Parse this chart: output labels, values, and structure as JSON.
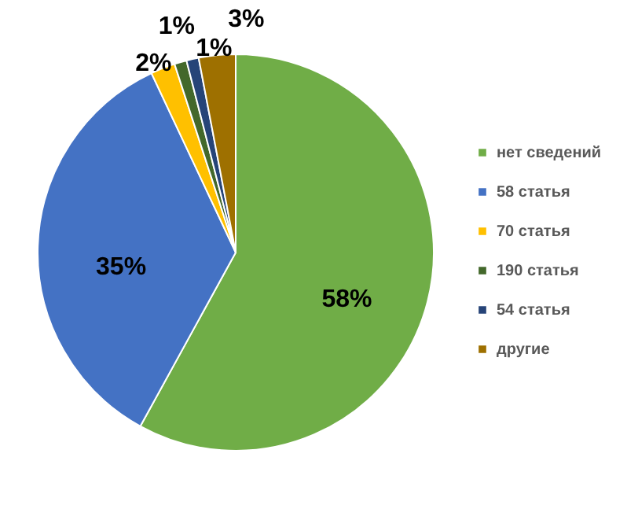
{
  "chart_data": {
    "type": "pie",
    "categories": [
      "нет сведений",
      "58 статья",
      "70 статья",
      "190 статья",
      "54 статья",
      "другие"
    ],
    "values": [
      58,
      35,
      2,
      1,
      1,
      3
    ],
    "colors": [
      "#70ad47",
      "#4472c4",
      "#ffc000",
      "#43682b",
      "#264478",
      "#9e7000"
    ],
    "value_labels": [
      "58%",
      "35%",
      "2%",
      "1%",
      "1%",
      "3%"
    ],
    "legend": "right"
  }
}
